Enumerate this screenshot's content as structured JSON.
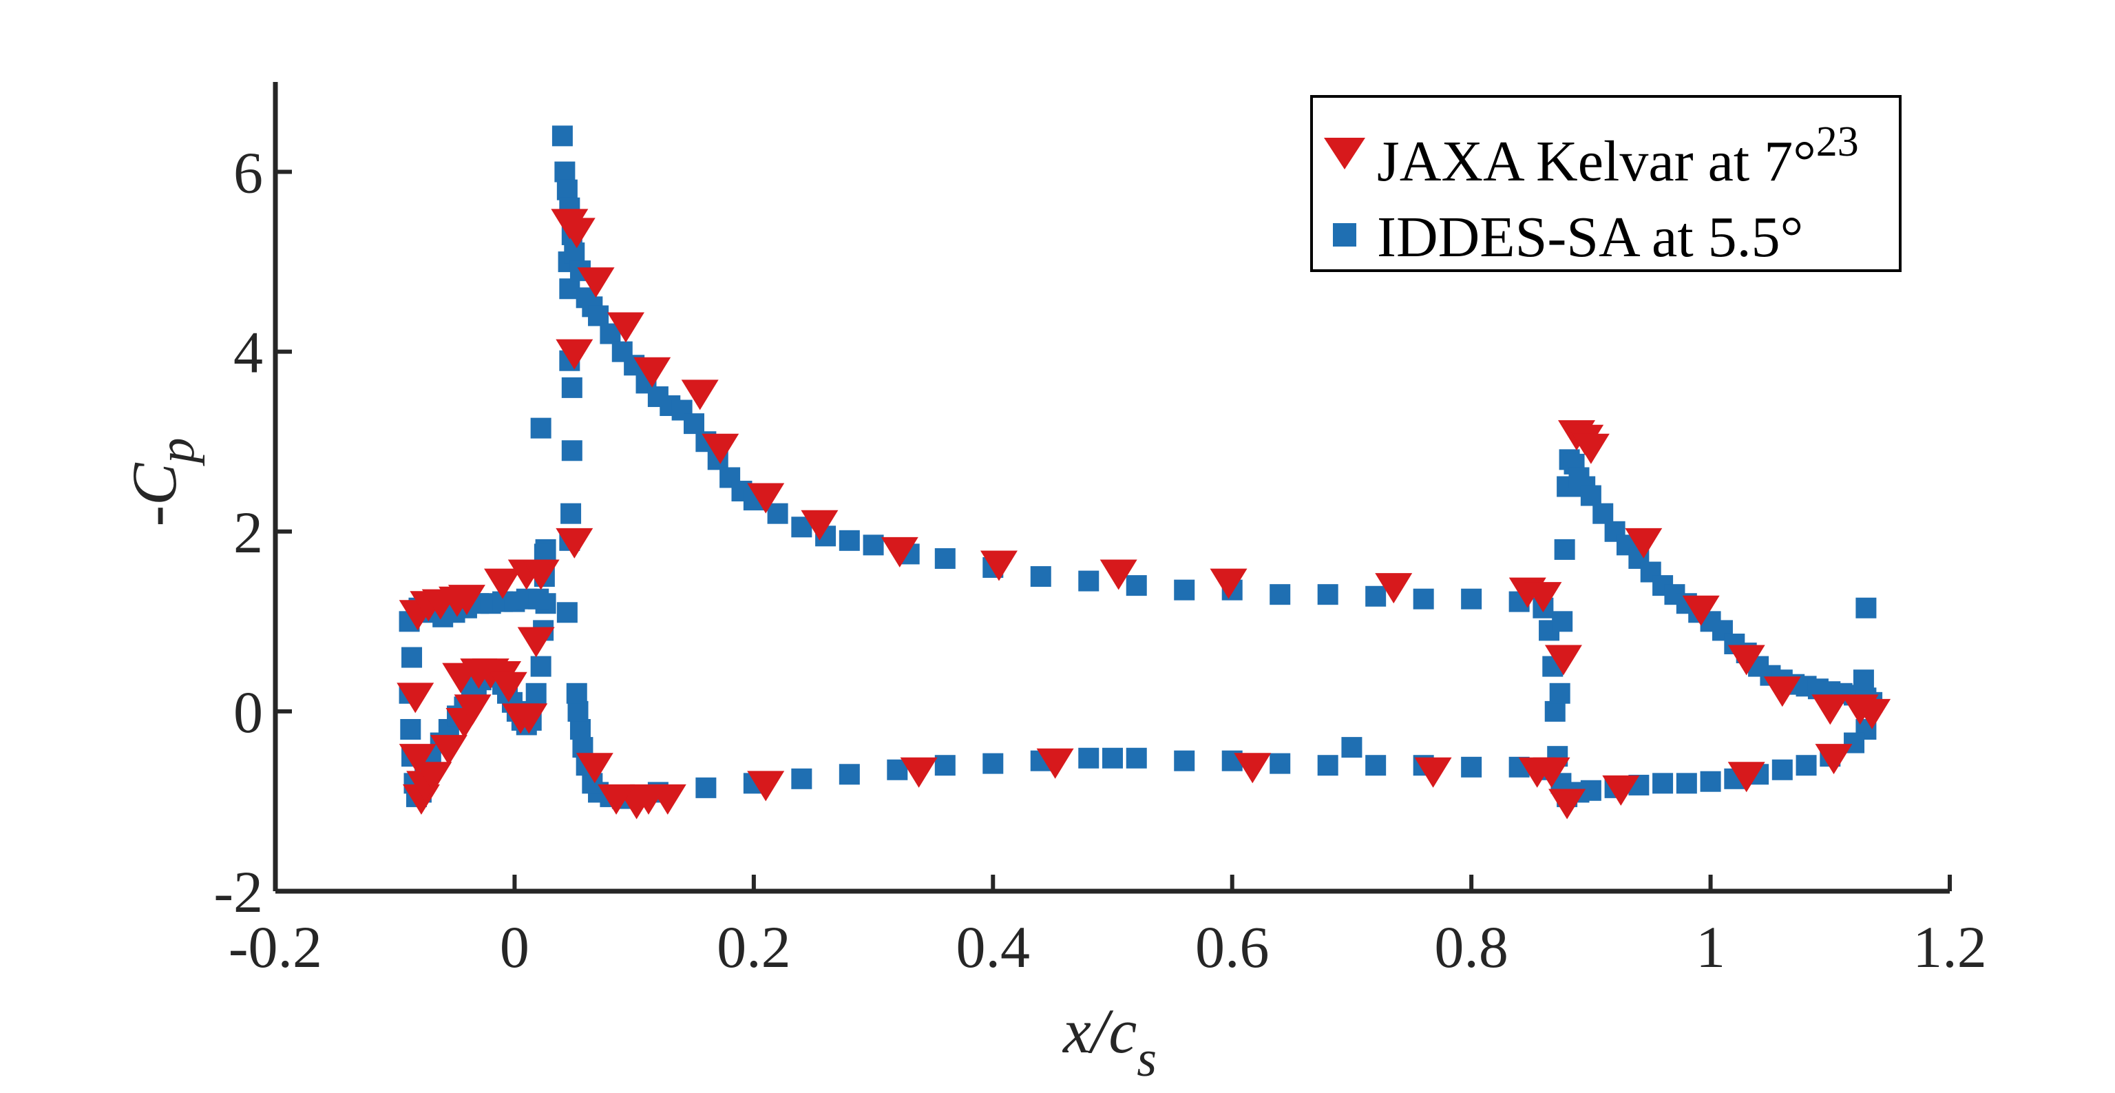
{
  "chart_data": {
    "type": "scatter",
    "title": "",
    "xlabel": "x/c",
    "xlabel_sub": "s",
    "ylabel": "-C",
    "ylabel_sub": "p",
    "xlim": [
      -0.2,
      1.2
    ],
    "ylim": [
      -2,
      7
    ],
    "xticks": [
      -0.2,
      0,
      0.2,
      0.4,
      0.6,
      0.8,
      1,
      1.2
    ],
    "xtick_labels": [
      "-0.2",
      "0",
      "0.2",
      "0.4",
      "0.6",
      "0.8",
      "1",
      "1.2"
    ],
    "yticks": [
      -2,
      0,
      2,
      4,
      6
    ],
    "ytick_labels": [
      "-2",
      "0",
      "2",
      "4",
      "6"
    ],
    "grid": false,
    "legend_position": "top-right",
    "series": [
      {
        "name": "JAXA Kelvar at 7°",
        "name_superscript": "23",
        "marker": "triangle-down",
        "color": "#d7191c",
        "points": [
          [
            -0.081,
            1.1
          ],
          [
            -0.072,
            1.2
          ],
          [
            -0.062,
            1.22
          ],
          [
            -0.048,
            1.25
          ],
          [
            -0.04,
            1.27
          ],
          [
            -0.01,
            1.45
          ],
          [
            0.01,
            1.55
          ],
          [
            0.022,
            1.55
          ],
          [
            -0.083,
            0.18
          ],
          [
            -0.081,
            -0.5
          ],
          [
            -0.078,
            -0.95
          ],
          [
            -0.075,
            -0.8
          ],
          [
            -0.068,
            -0.7
          ],
          [
            -0.055,
            -0.4
          ],
          [
            -0.042,
            -0.1
          ],
          [
            -0.035,
            0.05
          ],
          [
            -0.045,
            0.4
          ],
          [
            -0.03,
            0.45
          ],
          [
            -0.02,
            0.45
          ],
          [
            -0.01,
            0.42
          ],
          [
            -0.005,
            0.3
          ],
          [
            0.005,
            -0.05
          ],
          [
            0.012,
            -0.05
          ],
          [
            0.018,
            0.8
          ],
          [
            0.05,
            1.9
          ],
          [
            0.05,
            4.0
          ],
          [
            0.046,
            5.45
          ],
          [
            0.052,
            5.35
          ],
          [
            0.068,
            4.8
          ],
          [
            0.093,
            4.3
          ],
          [
            0.115,
            3.8
          ],
          [
            0.155,
            3.55
          ],
          [
            0.172,
            2.95
          ],
          [
            0.21,
            2.4
          ],
          [
            0.255,
            2.1
          ],
          [
            0.322,
            1.8
          ],
          [
            0.405,
            1.65
          ],
          [
            0.505,
            1.55
          ],
          [
            0.597,
            1.45
          ],
          [
            0.735,
            1.4
          ],
          [
            0.847,
            1.35
          ],
          [
            0.86,
            1.3
          ],
          [
            0.877,
            0.6
          ],
          [
            0.888,
            3.1
          ],
          [
            0.895,
            3.05
          ],
          [
            0.9,
            2.95
          ],
          [
            0.944,
            1.9
          ],
          [
            0.992,
            1.15
          ],
          [
            1.03,
            0.6
          ],
          [
            1.06,
            0.25
          ],
          [
            1.1,
            0.05
          ],
          [
            1.125,
            0.05
          ],
          [
            1.135,
            0.0
          ],
          [
            1.103,
            -0.5
          ],
          [
            1.03,
            -0.7
          ],
          [
            0.925,
            -0.85
          ],
          [
            0.88,
            -1.0
          ],
          [
            0.867,
            -0.65
          ],
          [
            0.855,
            -0.65
          ],
          [
            0.768,
            -0.65
          ],
          [
            0.617,
            -0.6
          ],
          [
            0.452,
            -0.55
          ],
          [
            0.338,
            -0.65
          ],
          [
            0.21,
            -0.8
          ],
          [
            0.128,
            -0.95
          ],
          [
            0.112,
            -0.95
          ],
          [
            0.102,
            -1.0
          ],
          [
            0.085,
            -0.95
          ],
          [
            0.067,
            -0.6
          ]
        ]
      },
      {
        "name": "IDDES-SA at 5.5°",
        "marker": "square",
        "color": "#1f6fb2",
        "points": [
          [
            -0.088,
            1.0
          ],
          [
            -0.086,
            0.6
          ],
          [
            -0.088,
            0.2
          ],
          [
            -0.087,
            -0.2
          ],
          [
            -0.086,
            -0.5
          ],
          [
            -0.084,
            -0.8
          ],
          [
            -0.082,
            -0.95
          ],
          [
            -0.078,
            -0.9
          ],
          [
            -0.075,
            -0.7
          ],
          [
            -0.07,
            -0.5
          ],
          [
            -0.062,
            -0.35
          ],
          [
            -0.055,
            -0.2
          ],
          [
            -0.048,
            -0.05
          ],
          [
            -0.042,
            0.05
          ],
          [
            -0.036,
            0.2
          ],
          [
            -0.032,
            0.3
          ],
          [
            -0.028,
            0.35
          ],
          [
            -0.024,
            0.38
          ],
          [
            -0.02,
            0.4
          ],
          [
            -0.015,
            0.38
          ],
          [
            -0.01,
            0.3
          ],
          [
            -0.006,
            0.2
          ],
          [
            -0.002,
            0.1
          ],
          [
            0.002,
            0.0
          ],
          [
            0.006,
            -0.1
          ],
          [
            0.01,
            -0.15
          ],
          [
            0.014,
            -0.1
          ],
          [
            0.018,
            0.2
          ],
          [
            0.022,
            0.5
          ],
          [
            0.024,
            0.9
          ],
          [
            0.026,
            1.2
          ],
          [
            -0.08,
            1.15
          ],
          [
            -0.07,
            1.1
          ],
          [
            -0.06,
            1.05
          ],
          [
            -0.05,
            1.1
          ],
          [
            -0.04,
            1.15
          ],
          [
            -0.03,
            1.2
          ],
          [
            -0.02,
            1.2
          ],
          [
            -0.01,
            1.22
          ],
          [
            0.0,
            1.22
          ],
          [
            0.01,
            1.25
          ],
          [
            0.02,
            1.25
          ],
          [
            0.025,
            1.5
          ],
          [
            0.026,
            1.8
          ],
          [
            0.025,
            1.75
          ],
          [
            0.022,
            3.15
          ],
          [
            0.044,
            1.1
          ],
          [
            0.046,
            1.9
          ],
          [
            0.047,
            2.2
          ],
          [
            0.048,
            2.9
          ],
          [
            0.048,
            3.6
          ],
          [
            0.046,
            3.9
          ],
          [
            0.04,
            6.4
          ],
          [
            0.042,
            6.0
          ],
          [
            0.044,
            5.8
          ],
          [
            0.046,
            5.6
          ],
          [
            0.048,
            5.3
          ],
          [
            0.045,
            5.0
          ],
          [
            0.046,
            4.7
          ],
          [
            0.05,
            5.1
          ],
          [
            0.055,
            4.9
          ],
          [
            0.06,
            4.6
          ],
          [
            0.065,
            4.5
          ],
          [
            0.07,
            4.4
          ],
          [
            0.08,
            4.2
          ],
          [
            0.09,
            4.0
          ],
          [
            0.1,
            3.85
          ],
          [
            0.11,
            3.65
          ],
          [
            0.12,
            3.5
          ],
          [
            0.13,
            3.4
          ],
          [
            0.14,
            3.35
          ],
          [
            0.15,
            3.2
          ],
          [
            0.16,
            3.0
          ],
          [
            0.17,
            2.8
          ],
          [
            0.18,
            2.6
          ],
          [
            0.19,
            2.45
          ],
          [
            0.2,
            2.35
          ],
          [
            0.22,
            2.2
          ],
          [
            0.24,
            2.05
          ],
          [
            0.26,
            1.95
          ],
          [
            0.28,
            1.9
          ],
          [
            0.3,
            1.85
          ],
          [
            0.33,
            1.75
          ],
          [
            0.36,
            1.7
          ],
          [
            0.4,
            1.6
          ],
          [
            0.44,
            1.5
          ],
          [
            0.48,
            1.45
          ],
          [
            0.52,
            1.4
          ],
          [
            0.56,
            1.35
          ],
          [
            0.6,
            1.35
          ],
          [
            0.64,
            1.3
          ],
          [
            0.68,
            1.3
          ],
          [
            0.72,
            1.28
          ],
          [
            0.76,
            1.25
          ],
          [
            0.8,
            1.25
          ],
          [
            0.84,
            1.22
          ],
          [
            0.86,
            1.15
          ],
          [
            0.865,
            0.9
          ],
          [
            0.868,
            0.5
          ],
          [
            0.87,
            0.0
          ],
          [
            0.872,
            -0.5
          ],
          [
            0.874,
            0.2
          ],
          [
            0.876,
            1.0
          ],
          [
            0.878,
            1.8
          ],
          [
            0.88,
            2.5
          ],
          [
            0.882,
            2.8
          ],
          [
            0.886,
            2.75
          ],
          [
            0.89,
            2.6
          ],
          [
            0.895,
            2.5
          ],
          [
            0.9,
            2.4
          ],
          [
            0.91,
            2.2
          ],
          [
            0.92,
            2.0
          ],
          [
            0.93,
            1.85
          ],
          [
            0.94,
            1.7
          ],
          [
            0.95,
            1.55
          ],
          [
            0.96,
            1.4
          ],
          [
            0.97,
            1.3
          ],
          [
            0.98,
            1.2
          ],
          [
            0.99,
            1.1
          ],
          [
            1.0,
            1.0
          ],
          [
            1.01,
            0.9
          ],
          [
            1.02,
            0.75
          ],
          [
            1.03,
            0.65
          ],
          [
            1.04,
            0.5
          ],
          [
            1.05,
            0.4
          ],
          [
            1.06,
            0.35
          ],
          [
            1.07,
            0.3
          ],
          [
            1.08,
            0.28
          ],
          [
            1.09,
            0.25
          ],
          [
            1.1,
            0.22
          ],
          [
            1.11,
            0.2
          ],
          [
            1.12,
            0.18
          ],
          [
            1.13,
            0.15
          ],
          [
            1.135,
            0.1
          ],
          [
            1.13,
            1.15
          ],
          [
            1.128,
            0.35
          ],
          [
            1.13,
            -0.2
          ],
          [
            1.12,
            -0.35
          ],
          [
            1.1,
            -0.5
          ],
          [
            1.08,
            -0.6
          ],
          [
            1.06,
            -0.65
          ],
          [
            1.04,
            -0.7
          ],
          [
            1.02,
            -0.75
          ],
          [
            1.0,
            -0.78
          ],
          [
            0.98,
            -0.8
          ],
          [
            0.96,
            -0.8
          ],
          [
            0.94,
            -0.82
          ],
          [
            0.92,
            -0.85
          ],
          [
            0.9,
            -0.88
          ],
          [
            0.89,
            -0.9
          ],
          [
            0.88,
            -0.95
          ],
          [
            0.875,
            -0.8
          ],
          [
            0.86,
            -0.65
          ],
          [
            0.84,
            -0.62
          ],
          [
            0.8,
            -0.62
          ],
          [
            0.76,
            -0.6
          ],
          [
            0.72,
            -0.6
          ],
          [
            0.7,
            -0.4
          ],
          [
            0.68,
            -0.6
          ],
          [
            0.64,
            -0.58
          ],
          [
            0.6,
            -0.55
          ],
          [
            0.56,
            -0.55
          ],
          [
            0.52,
            -0.52
          ],
          [
            0.5,
            -0.52
          ],
          [
            0.48,
            -0.52
          ],
          [
            0.44,
            -0.55
          ],
          [
            0.4,
            -0.58
          ],
          [
            0.36,
            -0.6
          ],
          [
            0.32,
            -0.65
          ],
          [
            0.28,
            -0.7
          ],
          [
            0.24,
            -0.75
          ],
          [
            0.2,
            -0.8
          ],
          [
            0.16,
            -0.85
          ],
          [
            0.12,
            -0.9
          ],
          [
            0.1,
            -0.95
          ],
          [
            0.09,
            -0.97
          ],
          [
            0.08,
            -0.95
          ],
          [
            0.07,
            -0.9
          ],
          [
            0.065,
            -0.8
          ],
          [
            0.06,
            -0.6
          ],
          [
            0.057,
            -0.4
          ],
          [
            0.055,
            -0.2
          ],
          [
            0.053,
            0.0
          ],
          [
            0.052,
            0.2
          ]
        ]
      }
    ]
  }
}
